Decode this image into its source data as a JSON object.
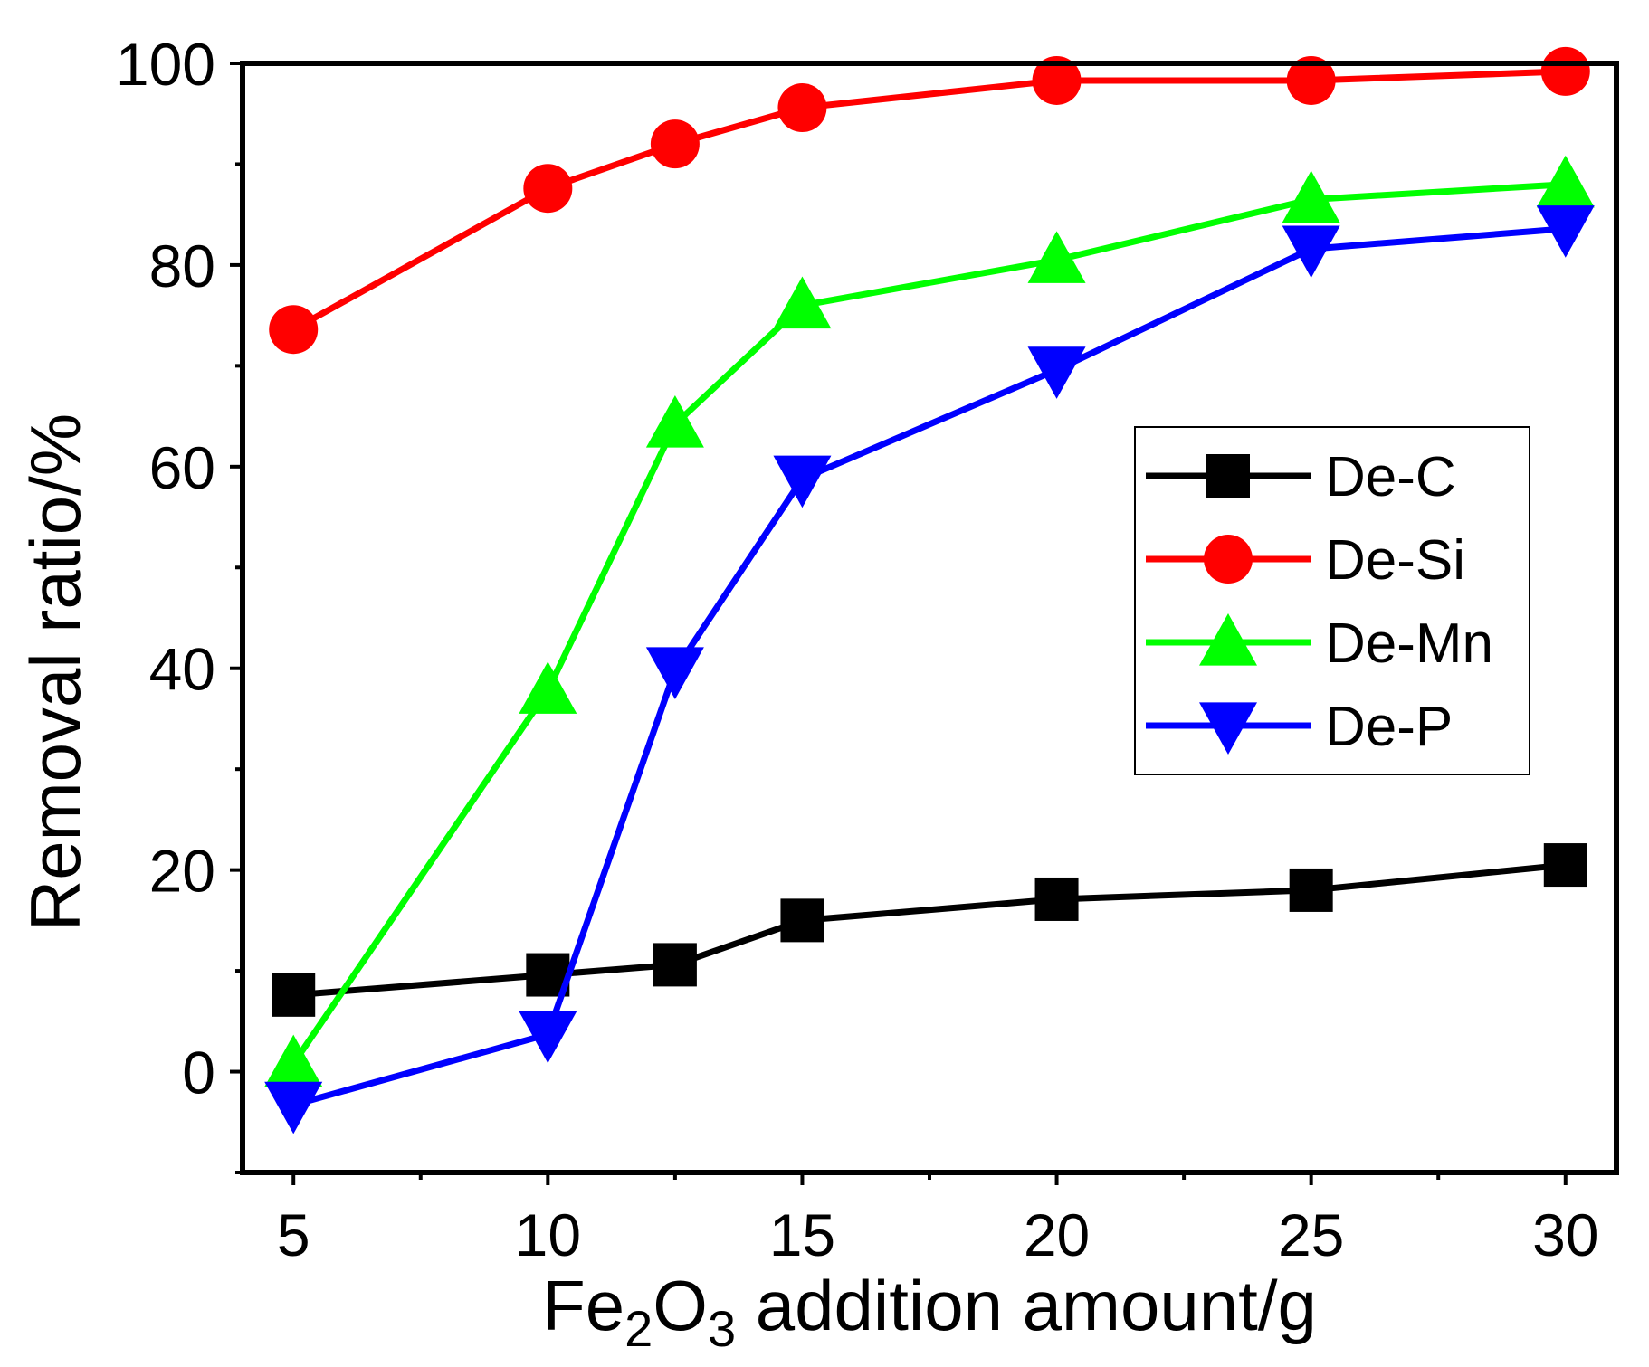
{
  "chart_data": {
    "type": "line",
    "title": "",
    "xlabel": {
      "prefix": "Fe",
      "sub1": "2",
      "mid": "O",
      "sub2": "3",
      "suffix": " addition amount/g"
    },
    "ylabel": "Removal ratio/%",
    "x": [
      5,
      10,
      12.5,
      15,
      20,
      25,
      30
    ],
    "xlim": [
      4,
      31
    ],
    "ylim": [
      -10,
      100
    ],
    "xticks": [
      "5",
      "10",
      "15",
      "20",
      "25",
      "30"
    ],
    "yticks": [
      "0",
      "20",
      "40",
      "60",
      "80",
      "100"
    ],
    "grid": false,
    "legend_position": "center-right",
    "series": [
      {
        "name": "De-C",
        "color": "#000000",
        "marker": "square",
        "values": [
          7.6,
          9.6,
          10.6,
          15.0,
          17.1,
          18.0,
          20.5
        ]
      },
      {
        "name": "De-Si",
        "color": "#ff0000",
        "marker": "circle",
        "values": [
          73.6,
          87.6,
          92.0,
          95.6,
          98.3,
          98.3,
          99.2
        ]
      },
      {
        "name": "De-Mn",
        "color": "#00ff00",
        "marker": "triangle-up",
        "values": [
          0.8,
          37.8,
          64.2,
          76.0,
          80.5,
          86.5,
          88.0
        ]
      },
      {
        "name": "De-P",
        "color": "#0000ff",
        "marker": "triangle-down",
        "values": [
          -3.3,
          3.7,
          39.8,
          58.8,
          69.6,
          81.6,
          83.6
        ]
      }
    ]
  }
}
